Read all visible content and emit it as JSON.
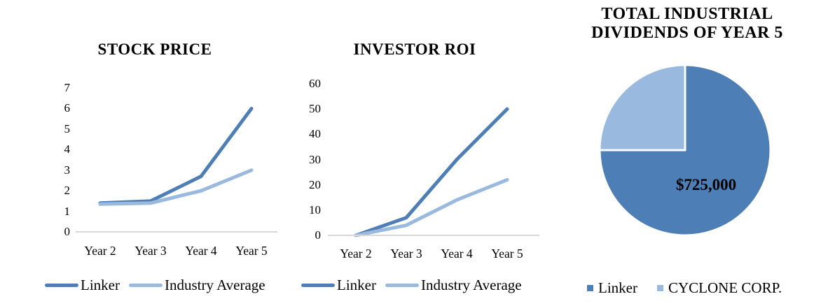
{
  "colors": {
    "primary": "#4d7eb5",
    "secondary": "#9ab9de",
    "axis": "#d7d7d7",
    "text": "#000000",
    "pie_border": "#ffffff"
  },
  "chart_data": [
    {
      "type": "line",
      "title": "STOCK PRICE",
      "categories": [
        "Year 2",
        "Year 3",
        "Year 4",
        "Year 5"
      ],
      "series": [
        {
          "name": "Linker",
          "color": "#4d7eb5",
          "values": [
            1.4,
            1.5,
            2.7,
            6
          ]
        },
        {
          "name": "Industry Average",
          "color": "#9ab9de",
          "values": [
            1.35,
            1.4,
            2,
            3
          ]
        }
      ],
      "xlabel": "",
      "ylabel": "",
      "ylim": [
        0,
        7
      ],
      "y_ticks": [
        0,
        1,
        2,
        3,
        4,
        5,
        6,
        7
      ],
      "grid": false,
      "legend_position": "bottom"
    },
    {
      "type": "line",
      "title": "INVESTOR ROI",
      "categories": [
        "Year 2",
        "Year 3",
        "Year 4",
        "Year 5"
      ],
      "series": [
        {
          "name": "Linker",
          "color": "#4d7eb5",
          "values": [
            0,
            7,
            30,
            50
          ]
        },
        {
          "name": "Industry Average",
          "color": "#9ab9de",
          "values": [
            0,
            4,
            14,
            22
          ]
        }
      ],
      "xlabel": "",
      "ylabel": "",
      "ylim": [
        0,
        60
      ],
      "y_ticks": [
        0,
        10,
        20,
        30,
        40,
        50,
        60
      ],
      "grid": false,
      "legend_position": "bottom"
    },
    {
      "type": "pie",
      "title": "TOTAL INDUSTRIAL DIVIDENDS OF YEAR 5",
      "title_lines": [
        "TOTAL INDUSTRIAL",
        "DIVIDENDS OF YEAR 5"
      ],
      "slices": [
        {
          "name": "Linker",
          "color": "#4d7eb5",
          "value": 75,
          "label": "$725,000"
        },
        {
          "name": "CYCLONE CORP.",
          "color": "#9ab9de",
          "value": 25,
          "label": ""
        }
      ],
      "legend_position": "bottom"
    }
  ]
}
